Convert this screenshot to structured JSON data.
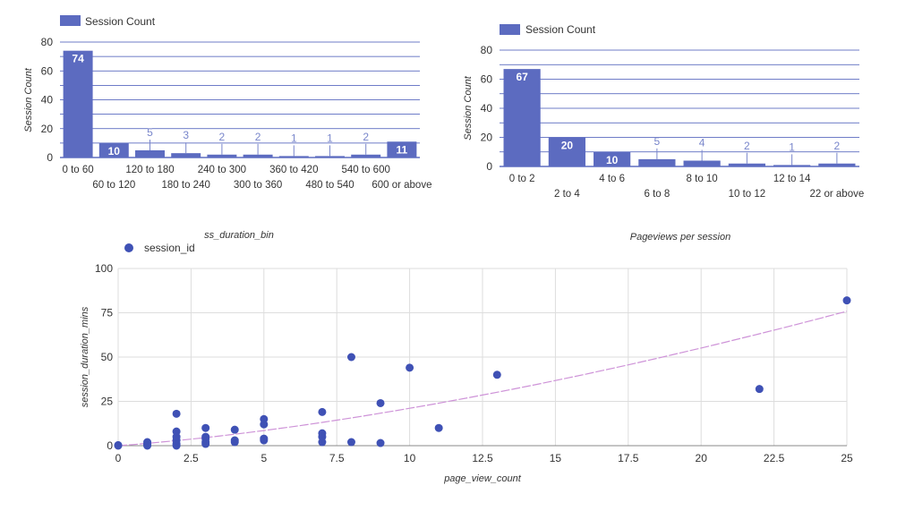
{
  "colors": {
    "bar": "#5c6bc0",
    "grid": "#3f51b5",
    "point": "#3f51b5",
    "trend": "#ce93d8",
    "label_dark": "#ffffff",
    "label_light": "#7986cb",
    "axis_text": "#333333"
  },
  "chart_data": [
    {
      "type": "bar",
      "legend": "Session Count",
      "title": "",
      "xlabel": "ss_duration_bin",
      "ylabel": "Session Count",
      "ylim": [
        0,
        80
      ],
      "yticks": [
        "0",
        "20",
        "40",
        "60",
        "80"
      ],
      "categories": [
        "0 to 60",
        "60 to 120",
        "120 to 180",
        "180 to 240",
        "240 to 300",
        "300 to 360",
        "360 to 420",
        "480 to 540",
        "540 to 600",
        "600 or above"
      ],
      "values": [
        74,
        10,
        5,
        3,
        2,
        2,
        1,
        1,
        2,
        11
      ]
    },
    {
      "type": "bar",
      "legend": "Session Count",
      "title": "",
      "xlabel": "Pageviews per session",
      "ylabel": "Session Count",
      "ylim": [
        0,
        80
      ],
      "yticks": [
        "0",
        "20",
        "40",
        "60",
        "80"
      ],
      "categories": [
        "0 to 2",
        "2 to 4",
        "4 to 6",
        "6 to 8",
        "8 to 10",
        "10 to 12",
        "12 to 14",
        "22 or above"
      ],
      "values": [
        67,
        20,
        10,
        5,
        4,
        2,
        1,
        2
      ]
    },
    {
      "type": "scatter",
      "legend": "session_id",
      "xlabel": "page_view_count",
      "ylabel": "session_duration_mins",
      "xlim": [
        0,
        25
      ],
      "ylim": [
        0,
        100
      ],
      "xticks": [
        "0",
        "2.5",
        "5",
        "7.5",
        "10",
        "12.5",
        "15",
        "17.5",
        "20",
        "22.5",
        "25"
      ],
      "yticks": [
        "0",
        "25",
        "50",
        "75",
        "100"
      ],
      "points": [
        [
          0,
          0
        ],
        [
          0,
          0.3
        ],
        [
          1,
          0
        ],
        [
          1,
          0.5
        ],
        [
          1,
          1
        ],
        [
          1,
          2
        ],
        [
          2,
          0
        ],
        [
          2,
          1
        ],
        [
          2,
          3
        ],
        [
          2,
          5
        ],
        [
          2,
          8
        ],
        [
          2,
          18
        ],
        [
          3,
          1
        ],
        [
          3,
          2
        ],
        [
          3,
          4
        ],
        [
          3,
          5
        ],
        [
          3,
          10
        ],
        [
          4,
          2
        ],
        [
          4,
          3
        ],
        [
          4,
          9
        ],
        [
          5,
          3
        ],
        [
          5,
          4
        ],
        [
          5,
          12
        ],
        [
          5,
          15
        ],
        [
          7,
          2
        ],
        [
          7,
          5
        ],
        [
          7,
          7
        ],
        [
          7,
          19
        ],
        [
          8,
          2
        ],
        [
          8,
          50
        ],
        [
          9,
          1.5
        ],
        [
          9,
          24
        ],
        [
          10,
          44
        ],
        [
          11,
          10
        ],
        [
          13,
          40
        ],
        [
          22,
          32
        ],
        [
          25,
          82
        ]
      ],
      "trendline": "exponential"
    }
  ]
}
